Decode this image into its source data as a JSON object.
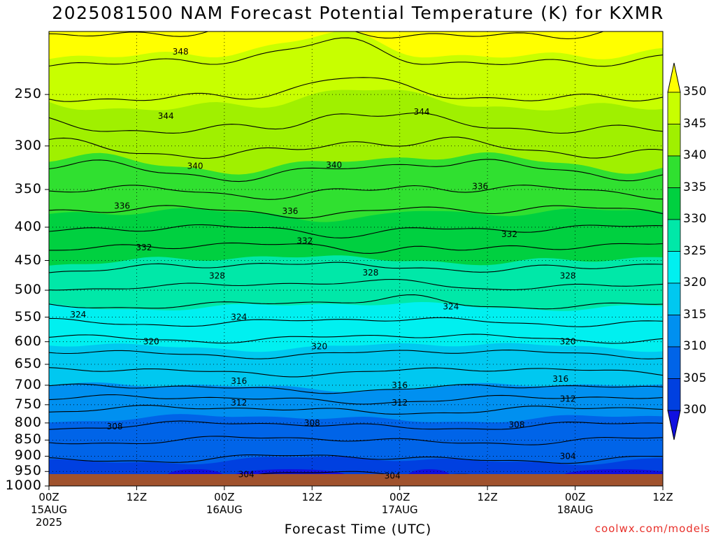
{
  "title": "2025081500 NAM Forecast Potential Temperature (K) for KXMR",
  "chart_data": {
    "type": "heatmap",
    "title": "2025081500 NAM Forecast Potential Temperature (K) for KXMR",
    "xlabel": "Forecast Time (UTC)",
    "ylabel": "",
    "y_axis": {
      "scale": "log-pressure",
      "range": [
        1000,
        200
      ],
      "ticks": [
        "250",
        "300",
        "350",
        "400",
        "450",
        "500",
        "550",
        "600",
        "650",
        "700",
        "750",
        "800",
        "850",
        "900",
        "950",
        "1000"
      ]
    },
    "x_axis": {
      "range": [
        "00Z 15AUG 2025",
        "12Z 18AUG 2025"
      ],
      "ticks": [
        {
          "t": "00Z",
          "date": "15AUG",
          "year": "2025"
        },
        {
          "t": "12Z",
          "date": "",
          "year": ""
        },
        {
          "t": "00Z",
          "date": "16AUG",
          "year": ""
        },
        {
          "t": "12Z",
          "date": "",
          "year": ""
        },
        {
          "t": "00Z",
          "date": "17AUG",
          "year": ""
        },
        {
          "t": "12Z",
          "date": "",
          "year": ""
        },
        {
          "t": "00Z",
          "date": "18AUG",
          "year": ""
        },
        {
          "t": "12Z",
          "date": "",
          "year": ""
        }
      ]
    },
    "colorbar": {
      "levels": [
        "350",
        "345",
        "340",
        "335",
        "330",
        "325",
        "320",
        "315",
        "310",
        "305",
        "300"
      ],
      "colors": [
        "#ffff00",
        "#c8ff00",
        "#a0f000",
        "#30e030",
        "#00d040",
        "#00e8a8",
        "#00f0f0",
        "#00c8f0",
        "#0090f0",
        "#0064e8",
        "#0040e0",
        "#1010e0"
      ]
    },
    "contour_labels": [
      {
        "text": "348",
        "hour": 18,
        "p": 215
      },
      {
        "text": "344",
        "hour": 16,
        "p": 270
      },
      {
        "text": "344",
        "hour": 51,
        "p": 266
      },
      {
        "text": "340",
        "hour": 20,
        "p": 322
      },
      {
        "text": "340",
        "hour": 39,
        "p": 321
      },
      {
        "text": "336",
        "hour": 10,
        "p": 371
      },
      {
        "text": "336",
        "hour": 33,
        "p": 378
      },
      {
        "text": "336",
        "hour": 59,
        "p": 346
      },
      {
        "text": "332",
        "hour": 13,
        "p": 430
      },
      {
        "text": "332",
        "hour": 35,
        "p": 420
      },
      {
        "text": "332",
        "hour": 63,
        "p": 410
      },
      {
        "text": "328",
        "hour": 23,
        "p": 475
      },
      {
        "text": "328",
        "hour": 44,
        "p": 470
      },
      {
        "text": "328",
        "hour": 71,
        "p": 475
      },
      {
        "text": "324",
        "hour": 4,
        "p": 545
      },
      {
        "text": "324",
        "hour": 26,
        "p": 550
      },
      {
        "text": "324",
        "hour": 55,
        "p": 530
      },
      {
        "text": "320",
        "hour": 14,
        "p": 600
      },
      {
        "text": "320",
        "hour": 37,
        "p": 610
      },
      {
        "text": "320",
        "hour": 71,
        "p": 600
      },
      {
        "text": "316",
        "hour": 26,
        "p": 690
      },
      {
        "text": "316",
        "hour": 48,
        "p": 700
      },
      {
        "text": "316",
        "hour": 70,
        "p": 685
      },
      {
        "text": "312",
        "hour": 26,
        "p": 745
      },
      {
        "text": "312",
        "hour": 48,
        "p": 745
      },
      {
        "text": "312",
        "hour": 71,
        "p": 735
      },
      {
        "text": "308",
        "hour": 9,
        "p": 810
      },
      {
        "text": "308",
        "hour": 36,
        "p": 800
      },
      {
        "text": "308",
        "hour": 64,
        "p": 805
      },
      {
        "text": "304",
        "hour": 27,
        "p": 960
      },
      {
        "text": "304",
        "hour": 47,
        "p": 965
      },
      {
        "text": "304",
        "hour": 71,
        "p": 900
      }
    ]
  },
  "credit": "coolwx.com/models"
}
